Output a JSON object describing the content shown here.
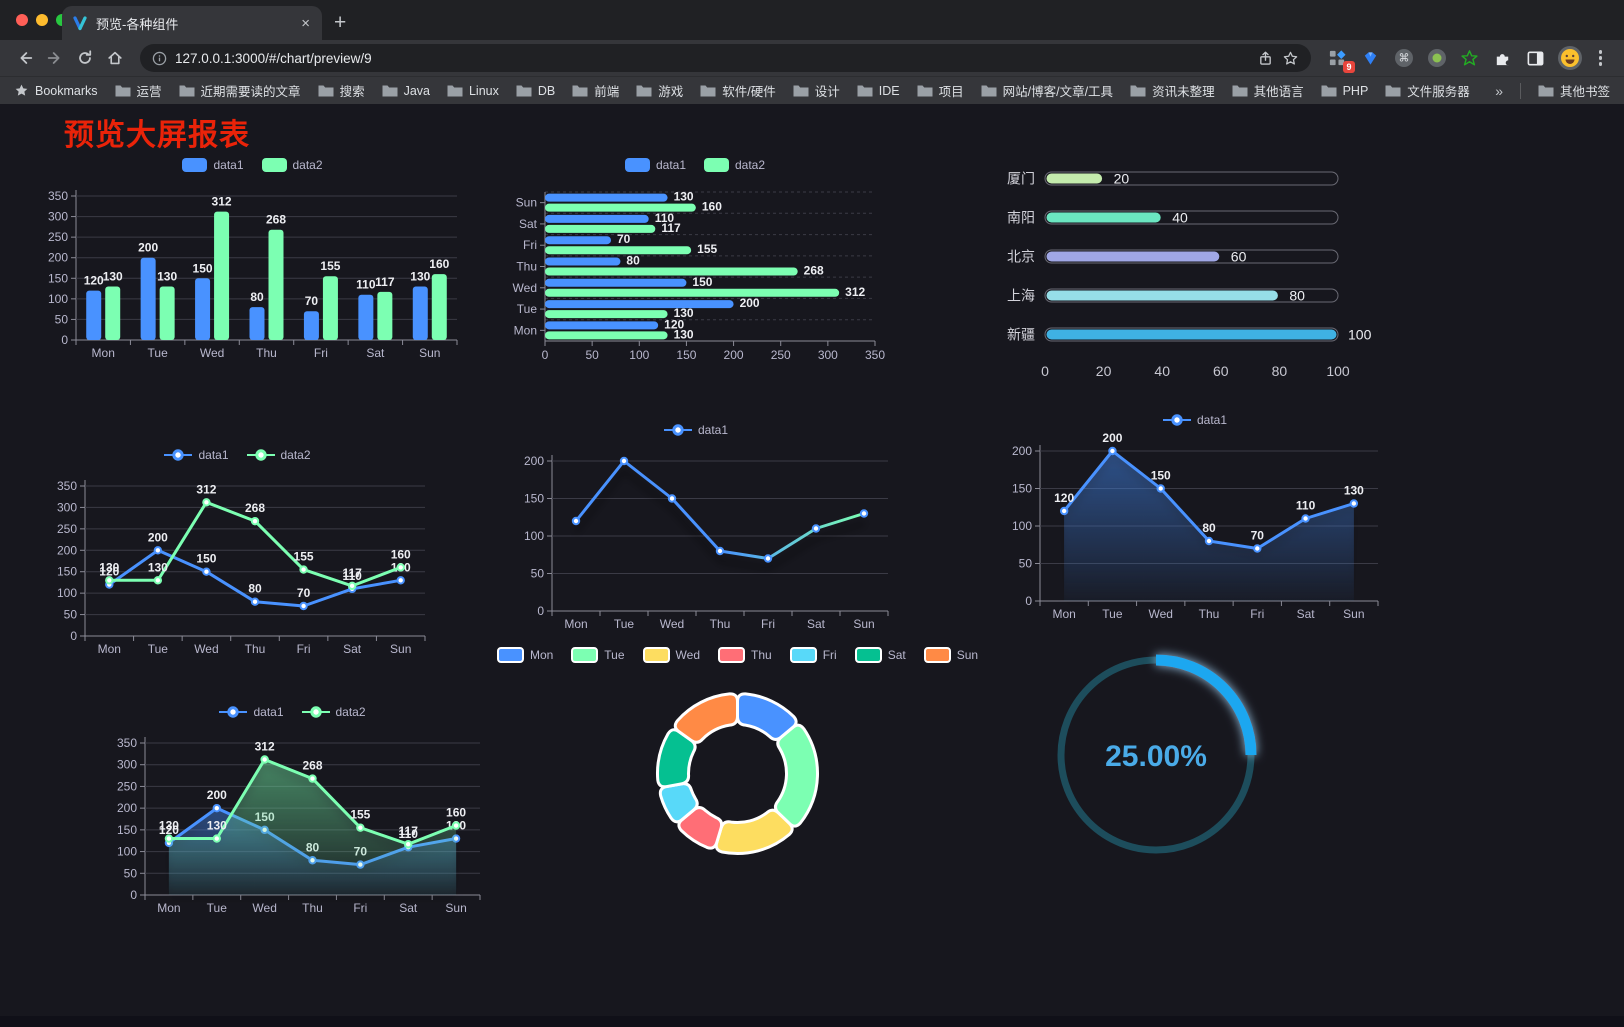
{
  "browser": {
    "tab": {
      "title": "预览-各种组件",
      "close_glyph": "×",
      "new_tab_glyph": "+"
    },
    "address": {
      "url": "127.0.0.1:3000/#/chart/preview/9"
    },
    "extensions": {
      "badge_count": "9"
    },
    "bookmarks": {
      "label": "Bookmarks",
      "items": [
        "运营",
        "近期需要读的文章",
        "搜索",
        "Java",
        "Linux",
        "DB",
        "前端",
        "游戏",
        "软件/硬件",
        "设计",
        "IDE",
        "项目",
        "网站/博客/文章/工具",
        "资讯未整理",
        "其他语言",
        "PHP",
        "文件服务器"
      ],
      "overflow_glyph": "»",
      "other_label": "其他书签"
    }
  },
  "page": {
    "title": "预览大屏报表",
    "title_color": "#ea2309"
  },
  "chart_data": [
    {
      "id": "grouped-bar",
      "type": "bar",
      "categories": [
        "Mon",
        "Tue",
        "Wed",
        "Thu",
        "Fri",
        "Sat",
        "Sun"
      ],
      "series": [
        {
          "name": "data1",
          "color": "#4992ff",
          "values": [
            120,
            200,
            150,
            80,
            70,
            110,
            130
          ]
        },
        {
          "name": "data2",
          "color": "#7cffb2",
          "values": [
            130,
            130,
            312,
            268,
            155,
            117,
            160
          ]
        }
      ],
      "ylim": [
        0,
        350
      ],
      "yticks": [
        0,
        50,
        100,
        150,
        200,
        250,
        300,
        350
      ],
      "legend": true,
      "legend_position": "top",
      "value_labels": true,
      "grid": true
    },
    {
      "id": "grouped-horizontal-bar",
      "type": "hbar",
      "categories": [
        "Mon",
        "Tue",
        "Wed",
        "Thu",
        "Fri",
        "Sat",
        "Sun"
      ],
      "series": [
        {
          "name": "data1",
          "color": "#4992ff",
          "values": [
            120,
            200,
            150,
            80,
            70,
            110,
            130
          ]
        },
        {
          "name": "data2",
          "color": "#7cffb2",
          "values": [
            130,
            130,
            312,
            268,
            155,
            117,
            160
          ]
        }
      ],
      "xlim": [
        0,
        350
      ],
      "xticks": [
        0,
        50,
        100,
        150,
        200,
        250,
        300,
        350
      ],
      "legend": true,
      "legend_position": "top",
      "value_labels": true,
      "grid": true
    },
    {
      "id": "city-progress-bars",
      "type": "progress",
      "max": 100,
      "xticks": [
        0,
        20,
        40,
        60,
        80,
        100
      ],
      "items": [
        {
          "label": "厦门",
          "value": 20,
          "color": "#c4ebad"
        },
        {
          "label": "南阳",
          "value": 40,
          "color": "#6be6c1"
        },
        {
          "label": "北京",
          "value": 60,
          "color": "#a0a7e6"
        },
        {
          "label": "上海",
          "value": 80,
          "color": "#96dee8"
        },
        {
          "label": "新疆",
          "value": 100,
          "color": "#3fb1e3"
        }
      ]
    },
    {
      "id": "two-series-line",
      "type": "line",
      "categories": [
        "Mon",
        "Tue",
        "Wed",
        "Thu",
        "Fri",
        "Sat",
        "Sun"
      ],
      "series": [
        {
          "name": "data1",
          "color": "#4992ff",
          "values": [
            120,
            200,
            150,
            80,
            70,
            110,
            130
          ]
        },
        {
          "name": "data2",
          "color": "#7cffb2",
          "values": [
            130,
            130,
            312,
            268,
            155,
            117,
            160
          ]
        }
      ],
      "ylim": [
        0,
        350
      ],
      "yticks": [
        0,
        50,
        100,
        150,
        200,
        250,
        300,
        350
      ],
      "legend": true,
      "value_labels": true,
      "grid": true
    },
    {
      "id": "gradient-line",
      "type": "line",
      "categories": [
        "Mon",
        "Tue",
        "Wed",
        "Thu",
        "Fri",
        "Sat",
        "Sun"
      ],
      "series": [
        {
          "name": "data1",
          "color": "#4992ff",
          "gradient": [
            "#4992ff",
            "#4992ff",
            "#7cffb2"
          ],
          "shadow": true,
          "values": [
            120,
            200,
            150,
            80,
            70,
            110,
            130
          ]
        }
      ],
      "ylim": [
        0,
        200
      ],
      "yticks": [
        0,
        50,
        100,
        150,
        200
      ],
      "legend": true,
      "value_labels": false,
      "grid": true
    },
    {
      "id": "area-line",
      "type": "line",
      "categories": [
        "Mon",
        "Tue",
        "Wed",
        "Thu",
        "Fri",
        "Sat",
        "Sun"
      ],
      "series": [
        {
          "name": "data1",
          "color": "#4992ff",
          "area": true,
          "shadow": true,
          "values": [
            120,
            200,
            150,
            80,
            70,
            110,
            130
          ]
        }
      ],
      "ylim": [
        0,
        200
      ],
      "yticks": [
        0,
        50,
        100,
        150,
        200
      ],
      "legend": true,
      "value_labels": true,
      "grid": true
    },
    {
      "id": "two-series-area-line",
      "type": "line",
      "categories": [
        "Mon",
        "Tue",
        "Wed",
        "Thu",
        "Fri",
        "Sat",
        "Sun"
      ],
      "series": [
        {
          "name": "data1",
          "color": "#4992ff",
          "area": true,
          "shadow": true,
          "values": [
            120,
            200,
            150,
            80,
            70,
            110,
            130
          ]
        },
        {
          "name": "data2",
          "color": "#7cffb2",
          "area": true,
          "shadow": true,
          "values": [
            130,
            130,
            312,
            268,
            155,
            117,
            160
          ]
        }
      ],
      "ylim": [
        0,
        350
      ],
      "yticks": [
        0,
        50,
        100,
        150,
        200,
        250,
        300,
        350
      ],
      "legend": true,
      "value_labels": true,
      "grid": true
    },
    {
      "id": "week-donut",
      "type": "donut",
      "legend": true,
      "items": [
        {
          "label": "Mon",
          "value": 120,
          "color": "#4992ff"
        },
        {
          "label": "Tue",
          "value": 200,
          "color": "#7cffb2"
        },
        {
          "label": "Wed",
          "value": 150,
          "color": "#fddd60"
        },
        {
          "label": "Thu",
          "value": 80,
          "color": "#ff6e76"
        },
        {
          "label": "Fri",
          "value": 70,
          "color": "#58d9f9"
        },
        {
          "label": "Sat",
          "value": 110,
          "color": "#05c091"
        },
        {
          "label": "Sun",
          "value": 130,
          "color": "#ff8a45"
        }
      ]
    },
    {
      "id": "ring-gauge",
      "type": "gauge",
      "value": 25,
      "max": 100,
      "label": "25.00%",
      "color": "#1aa7f0",
      "track_color": "#1d4d5c",
      "text_color": "#4aabe8"
    }
  ]
}
